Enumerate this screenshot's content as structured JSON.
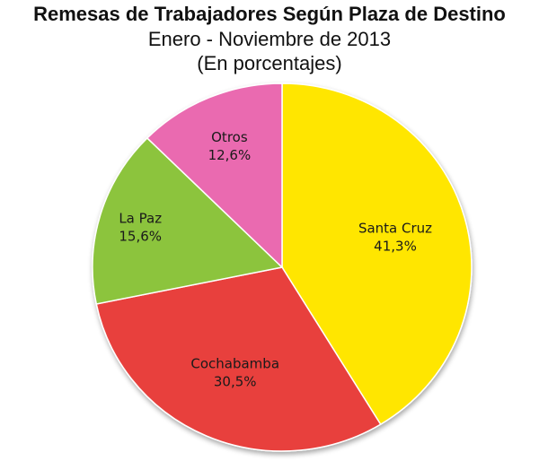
{
  "header": {
    "title": "Remesas de Trabajadores Según Plaza de Destino",
    "subtitle_line1": "Enero - Noviembre de 2013",
    "subtitle_line2": "(En porcentajes)"
  },
  "chart_data": {
    "type": "pie",
    "title": "Remesas de Trabajadores Según Plaza de Destino",
    "subtitle": "Enero - Noviembre de 2013 (En porcentajes)",
    "unit": "%",
    "start_angle_deg": 0,
    "direction": "clockwise",
    "slices": [
      {
        "label": "Santa Cruz",
        "value": 41.3,
        "value_label": "41,3%",
        "color": "#ffe600"
      },
      {
        "label": "Cochabamba",
        "value": 30.5,
        "value_label": "30,5%",
        "color": "#e8403c"
      },
      {
        "label": "La Paz",
        "value": 15.6,
        "value_label": "15,6%",
        "color": "#8cc43c"
      },
      {
        "label": "Otros",
        "value": 12.6,
        "value_label": "12,6%",
        "color": "#ea6bb0"
      }
    ]
  }
}
